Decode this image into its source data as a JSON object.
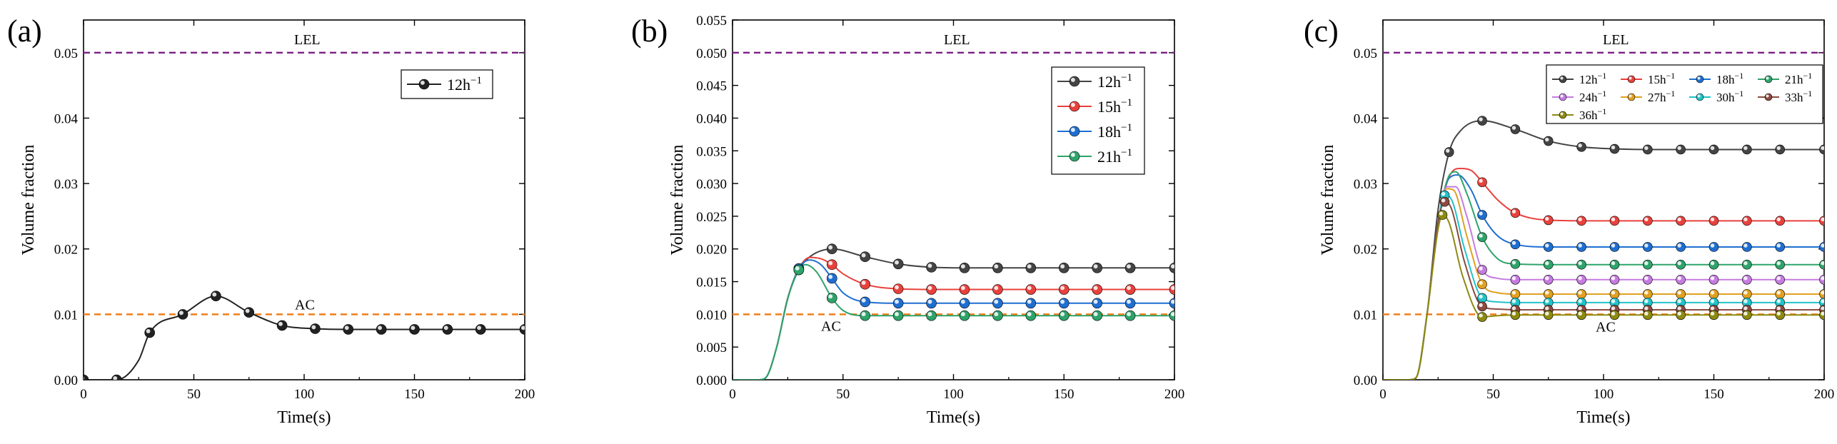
{
  "figure": {
    "panel_labels": [
      "(a)",
      "(b)",
      "(c)"
    ]
  },
  "chart_data": [
    {
      "type": "line",
      "panel": "(a)",
      "xlabel": "Time(s)",
      "ylabel": "Volume fraction",
      "xlim": [
        0,
        200
      ],
      "ylim": [
        0,
        0.055
      ],
      "xticks": [
        0,
        50,
        100,
        150,
        200
      ],
      "xtick_labels": [
        "0",
        "50",
        "100",
        "150",
        "200"
      ],
      "yticks": [
        0,
        0.01,
        0.02,
        0.03,
        0.04,
        0.05
      ],
      "ytick_labels": [
        "0.00",
        "0.01",
        "0.02",
        "0.03",
        "0.04",
        "0.05"
      ],
      "reference_lines": [
        {
          "label": "LEL",
          "y": 0.05,
          "color": "#7b1f86"
        },
        {
          "label": "AC",
          "y": 0.01,
          "color": "#ef7f1a"
        }
      ],
      "legend_position": "top-right",
      "series": [
        {
          "name": "12h",
          "superscript": "−1",
          "color": "#222222",
          "x": [
            0,
            15,
            25,
            30,
            45,
            60,
            75,
            90,
            105,
            120,
            135,
            150,
            165,
            180,
            200
          ],
          "y": [
            0,
            0,
            0.003,
            0.0072,
            0.01,
            0.0128,
            0.0103,
            0.0083,
            0.0078,
            0.0077,
            0.0077,
            0.0077,
            0.0077,
            0.0077,
            0.0077
          ],
          "markers_x": [
            0,
            15,
            30,
            45,
            60,
            75,
            90,
            105,
            120,
            135,
            150,
            165,
            180,
            200
          ]
        }
      ]
    },
    {
      "type": "line",
      "panel": "(b)",
      "xlabel": "Time(s)",
      "ylabel": "Volume fraction",
      "xlim": [
        0,
        200
      ],
      "ylim": [
        0,
        0.055
      ],
      "xticks": [
        0,
        50,
        100,
        150,
        200
      ],
      "xtick_labels": [
        "0",
        "50",
        "100",
        "150",
        "200"
      ],
      "yticks": [
        0,
        0.005,
        0.01,
        0.015,
        0.02,
        0.025,
        0.03,
        0.035,
        0.04,
        0.045,
        0.05,
        0.055
      ],
      "ytick_labels": [
        "0.000",
        "0.005",
        "0.010",
        "0.015",
        "0.020",
        "0.025",
        "0.030",
        "0.035",
        "0.040",
        "0.045",
        "0.050",
        "0.055"
      ],
      "reference_lines": [
        {
          "label": "LEL",
          "y": 0.05,
          "color": "#7b1f86"
        },
        {
          "label": "AC",
          "y": 0.01,
          "color": "#ef7f1a"
        }
      ],
      "legend_position": "top-right",
      "series": [
        {
          "name": "12h",
          "superscript": "−1",
          "color": "#444444",
          "x": [
            0,
            12,
            15,
            20,
            25,
            30,
            35,
            45,
            60,
            75,
            90,
            105,
            120,
            135,
            150,
            165,
            180,
            200
          ],
          "y": [
            0,
            0,
            0.0003,
            0.005,
            0.0125,
            0.0168,
            0.0188,
            0.02,
            0.0188,
            0.0177,
            0.0172,
            0.0171,
            0.0171,
            0.0171,
            0.0171,
            0.0171,
            0.0171,
            0.0171
          ],
          "markers_x": [
            30,
            45,
            60,
            75,
            90,
            105,
            120,
            135,
            150,
            165,
            180,
            200
          ]
        },
        {
          "name": "15h",
          "superscript": "−1",
          "color": "#e8413c",
          "x": [
            0,
            12,
            15,
            20,
            25,
            30,
            35,
            40,
            45,
            50,
            60,
            75,
            90,
            105,
            120,
            135,
            150,
            165,
            180,
            200
          ],
          "y": [
            0,
            0,
            0.0003,
            0.005,
            0.0125,
            0.017,
            0.0187,
            0.0185,
            0.0176,
            0.0162,
            0.0146,
            0.0139,
            0.0138,
            0.0138,
            0.0138,
            0.0138,
            0.0138,
            0.0138,
            0.0138,
            0.0138
          ],
          "markers_x": [
            30,
            45,
            60,
            75,
            90,
            105,
            120,
            135,
            150,
            165,
            180,
            200
          ]
        },
        {
          "name": "18h",
          "superscript": "−1",
          "color": "#1f6fd1",
          "x": [
            0,
            12,
            15,
            20,
            25,
            30,
            35,
            40,
            45,
            50,
            60,
            75,
            90,
            105,
            120,
            135,
            150,
            165,
            180,
            200
          ],
          "y": [
            0,
            0,
            0.0003,
            0.005,
            0.0124,
            0.017,
            0.0183,
            0.0176,
            0.0155,
            0.0133,
            0.0119,
            0.0117,
            0.0117,
            0.0117,
            0.0117,
            0.0117,
            0.0117,
            0.0117,
            0.0117,
            0.0117
          ],
          "markers_x": [
            30,
            45,
            60,
            75,
            90,
            105,
            120,
            135,
            150,
            165,
            180,
            200
          ]
        },
        {
          "name": "21h",
          "superscript": "−1",
          "color": "#2ea36a",
          "x": [
            0,
            12,
            15,
            20,
            25,
            30,
            33,
            38,
            45,
            50,
            60,
            75,
            90,
            105,
            120,
            135,
            150,
            165,
            180,
            200
          ],
          "y": [
            0,
            0,
            0.0003,
            0.005,
            0.0124,
            0.0168,
            0.0176,
            0.0165,
            0.0125,
            0.0106,
            0.0098,
            0.0098,
            0.0098,
            0.0098,
            0.0098,
            0.0098,
            0.0098,
            0.0098,
            0.0098,
            0.0098
          ],
          "markers_x": [
            30,
            45,
            60,
            75,
            90,
            105,
            120,
            135,
            150,
            165,
            180,
            200
          ]
        }
      ]
    },
    {
      "type": "line",
      "panel": "(c)",
      "xlabel": "Time(s)",
      "ylabel": "Volume fraction",
      "xlim": [
        0,
        200
      ],
      "ylim": [
        0,
        0.055
      ],
      "xticks": [
        0,
        50,
        100,
        150,
        200
      ],
      "xtick_labels": [
        "0",
        "50",
        "100",
        "150",
        "200"
      ],
      "yticks": [
        0,
        0.01,
        0.02,
        0.03,
        0.04,
        0.05
      ],
      "ytick_labels": [
        "0.00",
        "0.01",
        "0.02",
        "0.03",
        "0.04",
        "0.05"
      ],
      "reference_lines": [
        {
          "label": "LEL",
          "y": 0.05,
          "color": "#7b1f86"
        },
        {
          "label": "AC",
          "y": 0.01,
          "color": "#ef7f1a"
        }
      ],
      "legend_position": "top-right",
      "series": [
        {
          "name": "12h",
          "superscript": "−1",
          "color": "#444444",
          "x": [
            0,
            12,
            15,
            20,
            25,
            30,
            35,
            45,
            60,
            75,
            90,
            105,
            120,
            135,
            150,
            165,
            180,
            200
          ],
          "y": [
            0,
            0,
            0.0003,
            0.01,
            0.026,
            0.0348,
            0.038,
            0.0396,
            0.0383,
            0.0365,
            0.0356,
            0.0353,
            0.0352,
            0.0352,
            0.0352,
            0.0352,
            0.0352,
            0.0352
          ],
          "markers_x": [
            30,
            45,
            60,
            75,
            90,
            105,
            120,
            135,
            150,
            165,
            180,
            200
          ]
        },
        {
          "name": "15h",
          "superscript": "−1",
          "color": "#e8413c",
          "x": [
            0,
            12,
            15,
            20,
            25,
            30,
            35,
            40,
            45,
            52,
            60,
            75,
            90,
            105,
            120,
            135,
            150,
            165,
            180,
            200
          ],
          "y": [
            0,
            0,
            0.0003,
            0.01,
            0.024,
            0.031,
            0.0323,
            0.032,
            0.0302,
            0.0275,
            0.0255,
            0.0244,
            0.0243,
            0.0243,
            0.0243,
            0.0243,
            0.0243,
            0.0243,
            0.0243,
            0.0243
          ],
          "markers_x": [
            45,
            60,
            75,
            90,
            105,
            120,
            135,
            150,
            165,
            180,
            200
          ]
        },
        {
          "name": "18h",
          "superscript": "−1",
          "color": "#1f6fd1",
          "x": [
            0,
            12,
            15,
            20,
            25,
            30,
            34,
            40,
            45,
            52,
            60,
            75,
            90,
            105,
            120,
            135,
            150,
            165,
            180,
            200
          ],
          "y": [
            0,
            0,
            0.0003,
            0.01,
            0.024,
            0.0308,
            0.0313,
            0.029,
            0.0252,
            0.022,
            0.0207,
            0.0203,
            0.0203,
            0.0203,
            0.0203,
            0.0203,
            0.0203,
            0.0203,
            0.0203,
            0.0203
          ],
          "markers_x": [
            45,
            60,
            75,
            90,
            105,
            120,
            135,
            150,
            165,
            180,
            200
          ]
        },
        {
          "name": "21h",
          "superscript": "−1",
          "color": "#2ea36a",
          "x": [
            0,
            12,
            15,
            20,
            25,
            30,
            33,
            38,
            45,
            52,
            60,
            75,
            90,
            105,
            120,
            135,
            150,
            165,
            180,
            200
          ],
          "y": [
            0,
            0,
            0.0003,
            0.01,
            0.024,
            0.0312,
            0.0318,
            0.0285,
            0.0218,
            0.0185,
            0.0177,
            0.0176,
            0.0176,
            0.0176,
            0.0176,
            0.0176,
            0.0176,
            0.0176,
            0.0176,
            0.0176
          ],
          "markers_x": [
            45,
            60,
            75,
            90,
            105,
            120,
            135,
            150,
            165,
            180,
            200
          ]
        },
        {
          "name": "24h",
          "superscript": "−1",
          "color": "#c57be0",
          "x": [
            0,
            12,
            15,
            20,
            25,
            29,
            33,
            38,
            45,
            52,
            60,
            75,
            90,
            105,
            120,
            135,
            150,
            165,
            180,
            200
          ],
          "y": [
            0,
            0,
            0.0003,
            0.01,
            0.024,
            0.0295,
            0.0295,
            0.025,
            0.0168,
            0.0155,
            0.0153,
            0.0153,
            0.0153,
            0.0153,
            0.0153,
            0.0153,
            0.0153,
            0.0153,
            0.0153,
            0.0153
          ],
          "markers_x": [
            45,
            60,
            75,
            90,
            105,
            120,
            135,
            150,
            165,
            180,
            200
          ]
        },
        {
          "name": "27h",
          "superscript": "−1",
          "color": "#e0a020",
          "x": [
            0,
            12,
            15,
            20,
            25,
            29,
            32,
            38,
            45,
            52,
            60,
            75,
            90,
            105,
            120,
            135,
            150,
            165,
            180,
            200
          ],
          "y": [
            0,
            0,
            0.0003,
            0.01,
            0.024,
            0.0292,
            0.029,
            0.022,
            0.0146,
            0.0133,
            0.0131,
            0.0131,
            0.0131,
            0.0131,
            0.0131,
            0.0131,
            0.0131,
            0.0131,
            0.0131,
            0.0131
          ],
          "markers_x": [
            45,
            60,
            75,
            90,
            105,
            120,
            135,
            150,
            165,
            180,
            200
          ]
        },
        {
          "name": "30h",
          "superscript": "−1",
          "color": "#22c3c9",
          "x": [
            0,
            12,
            15,
            20,
            25,
            28,
            31,
            37,
            45,
            52,
            60,
            75,
            90,
            105,
            120,
            135,
            150,
            165,
            180,
            200
          ],
          "y": [
            0,
            0,
            0.0003,
            0.01,
            0.024,
            0.0282,
            0.0276,
            0.02,
            0.0125,
            0.0119,
            0.0118,
            0.0118,
            0.0118,
            0.0118,
            0.0118,
            0.0118,
            0.0118,
            0.0118,
            0.0118,
            0.0118
          ],
          "markers_x": [
            28,
            45,
            60,
            75,
            90,
            105,
            120,
            135,
            150,
            165,
            180,
            200
          ]
        },
        {
          "name": "33h",
          "superscript": "−1",
          "color": "#8b4a40",
          "x": [
            0,
            12,
            15,
            20,
            25,
            28,
            31,
            37,
            45,
            52,
            60,
            75,
            90,
            105,
            120,
            135,
            150,
            165,
            180,
            200
          ],
          "y": [
            0,
            0,
            0.0003,
            0.01,
            0.024,
            0.0272,
            0.0262,
            0.018,
            0.0112,
            0.0108,
            0.0107,
            0.0107,
            0.0107,
            0.0107,
            0.0107,
            0.0107,
            0.0107,
            0.0107,
            0.0107,
            0.0107
          ],
          "markers_x": [
            28,
            45,
            60,
            75,
            90,
            105,
            120,
            135,
            150,
            165,
            180,
            200
          ]
        },
        {
          "name": "36h",
          "superscript": "−1",
          "color": "#8c8a10",
          "x": [
            0,
            12,
            15,
            20,
            25,
            27,
            30,
            36,
            45,
            52,
            60,
            75,
            90,
            105,
            120,
            135,
            150,
            165,
            180,
            200
          ],
          "y": [
            0,
            0,
            0.0003,
            0.01,
            0.023,
            0.0252,
            0.024,
            0.016,
            0.0096,
            0.0098,
            0.0099,
            0.0099,
            0.0099,
            0.0099,
            0.0099,
            0.0099,
            0.0099,
            0.0099,
            0.0099,
            0.0099
          ],
          "markers_x": [
            27,
            45,
            60,
            75,
            90,
            105,
            120,
            135,
            150,
            165,
            180,
            200
          ]
        }
      ]
    }
  ]
}
